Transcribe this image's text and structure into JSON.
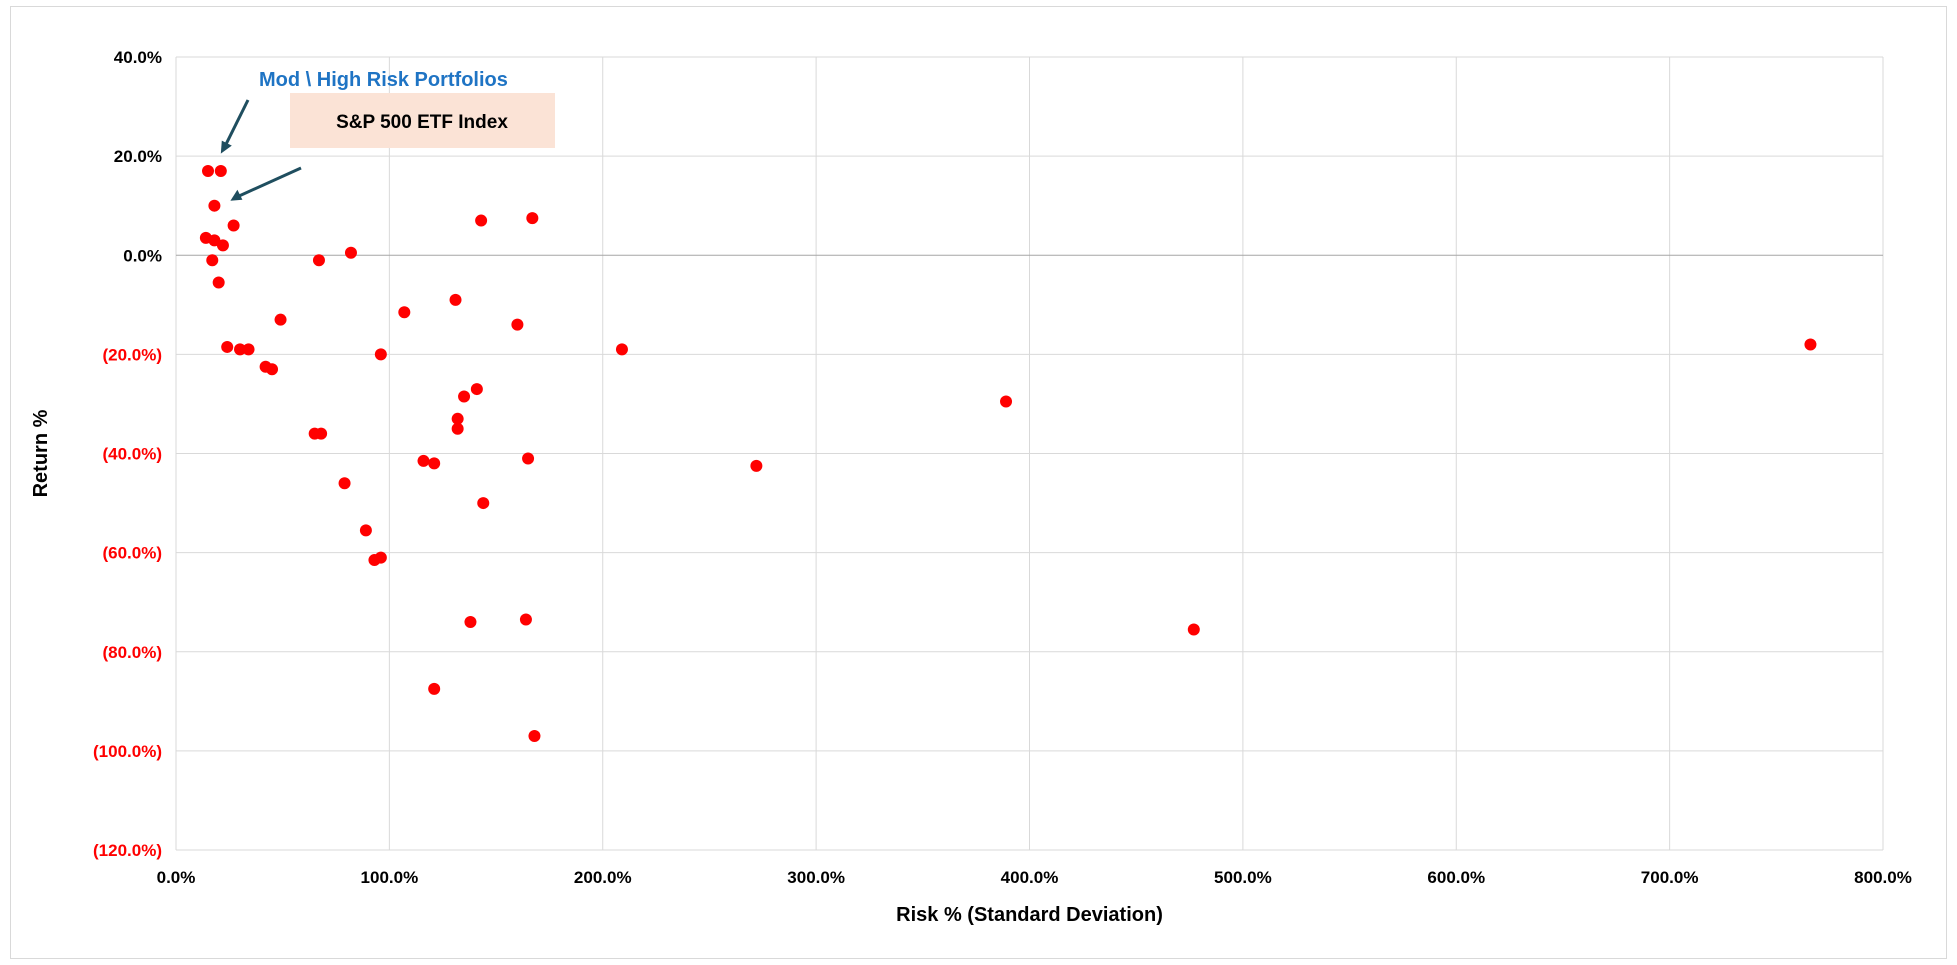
{
  "chart_data": {
    "type": "scatter",
    "title": "",
    "xlabel": "Risk % (Standard Deviation)",
    "ylabel": "Return %",
    "xlim": [
      0,
      800
    ],
    "ylim": [
      -120,
      40
    ],
    "x_ticks": [
      0,
      100,
      200,
      300,
      400,
      500,
      600,
      700,
      800
    ],
    "y_ticks": [
      40,
      20,
      0,
      -20,
      -40,
      -60,
      -80,
      -100,
      -120
    ],
    "x_tick_labels": [
      "0.0%",
      "100.0%",
      "200.0%",
      "300.0%",
      "400.0%",
      "500.0%",
      "600.0%",
      "700.0%",
      "800.0%"
    ],
    "y_tick_labels": [
      "40.0%",
      "20.0%",
      "0.0%",
      "(20.0%)",
      "(40.0%)",
      "(60.0%)",
      "(80.0%)",
      "(100.0%)",
      "(120.0%)"
    ],
    "grid": true,
    "colors": {
      "points": "#ff0000",
      "negative_ticks": "#ff0000",
      "positive_ticks": "#000000",
      "gridlines": "#d9d9d9",
      "zero_line": "#a6a6a6",
      "annotation_blue": "#1f74c4",
      "arrow": "#1f4e5f",
      "callout_fill": "#fbe3d6"
    },
    "annotations": [
      {
        "text": "Mod \\ High Risk Portfolios",
        "color": "#1f74c4"
      },
      {
        "text": "S&P 500 ETF Index",
        "color": "#000000",
        "boxed": true
      }
    ],
    "series": [
      {
        "points": [
          [
            15,
            17
          ],
          [
            21,
            17
          ],
          [
            18,
            10
          ],
          [
            27,
            6
          ],
          [
            14,
            3.5
          ],
          [
            18,
            3
          ],
          [
            22,
            2
          ],
          [
            17,
            -1
          ],
          [
            20,
            -5.5
          ],
          [
            67,
            -1
          ],
          [
            82,
            0.5
          ],
          [
            143,
            7
          ],
          [
            167,
            7.5
          ],
          [
            49,
            -13
          ],
          [
            24,
            -18.5
          ],
          [
            30,
            -19
          ],
          [
            34,
            -19
          ],
          [
            42,
            -22.5
          ],
          [
            45,
            -23
          ],
          [
            107,
            -11.5
          ],
          [
            131,
            -9
          ],
          [
            160,
            -14
          ],
          [
            96,
            -20
          ],
          [
            209,
            -19
          ],
          [
            766,
            -18
          ],
          [
            65,
            -36
          ],
          [
            68,
            -36
          ],
          [
            135,
            -28.5
          ],
          [
            141,
            -27
          ],
          [
            132,
            -33
          ],
          [
            132,
            -35
          ],
          [
            389,
            -29.5
          ],
          [
            116,
            -41.5
          ],
          [
            121,
            -42
          ],
          [
            165,
            -41
          ],
          [
            272,
            -42.5
          ],
          [
            79,
            -46
          ],
          [
            144,
            -50
          ],
          [
            89,
            -55.5
          ],
          [
            93,
            -61.5
          ],
          [
            96,
            -61
          ],
          [
            138,
            -74
          ],
          [
            164,
            -73.5
          ],
          [
            477,
            -75.5
          ],
          [
            121,
            -87.5
          ],
          [
            168,
            -97
          ]
        ]
      }
    ]
  }
}
